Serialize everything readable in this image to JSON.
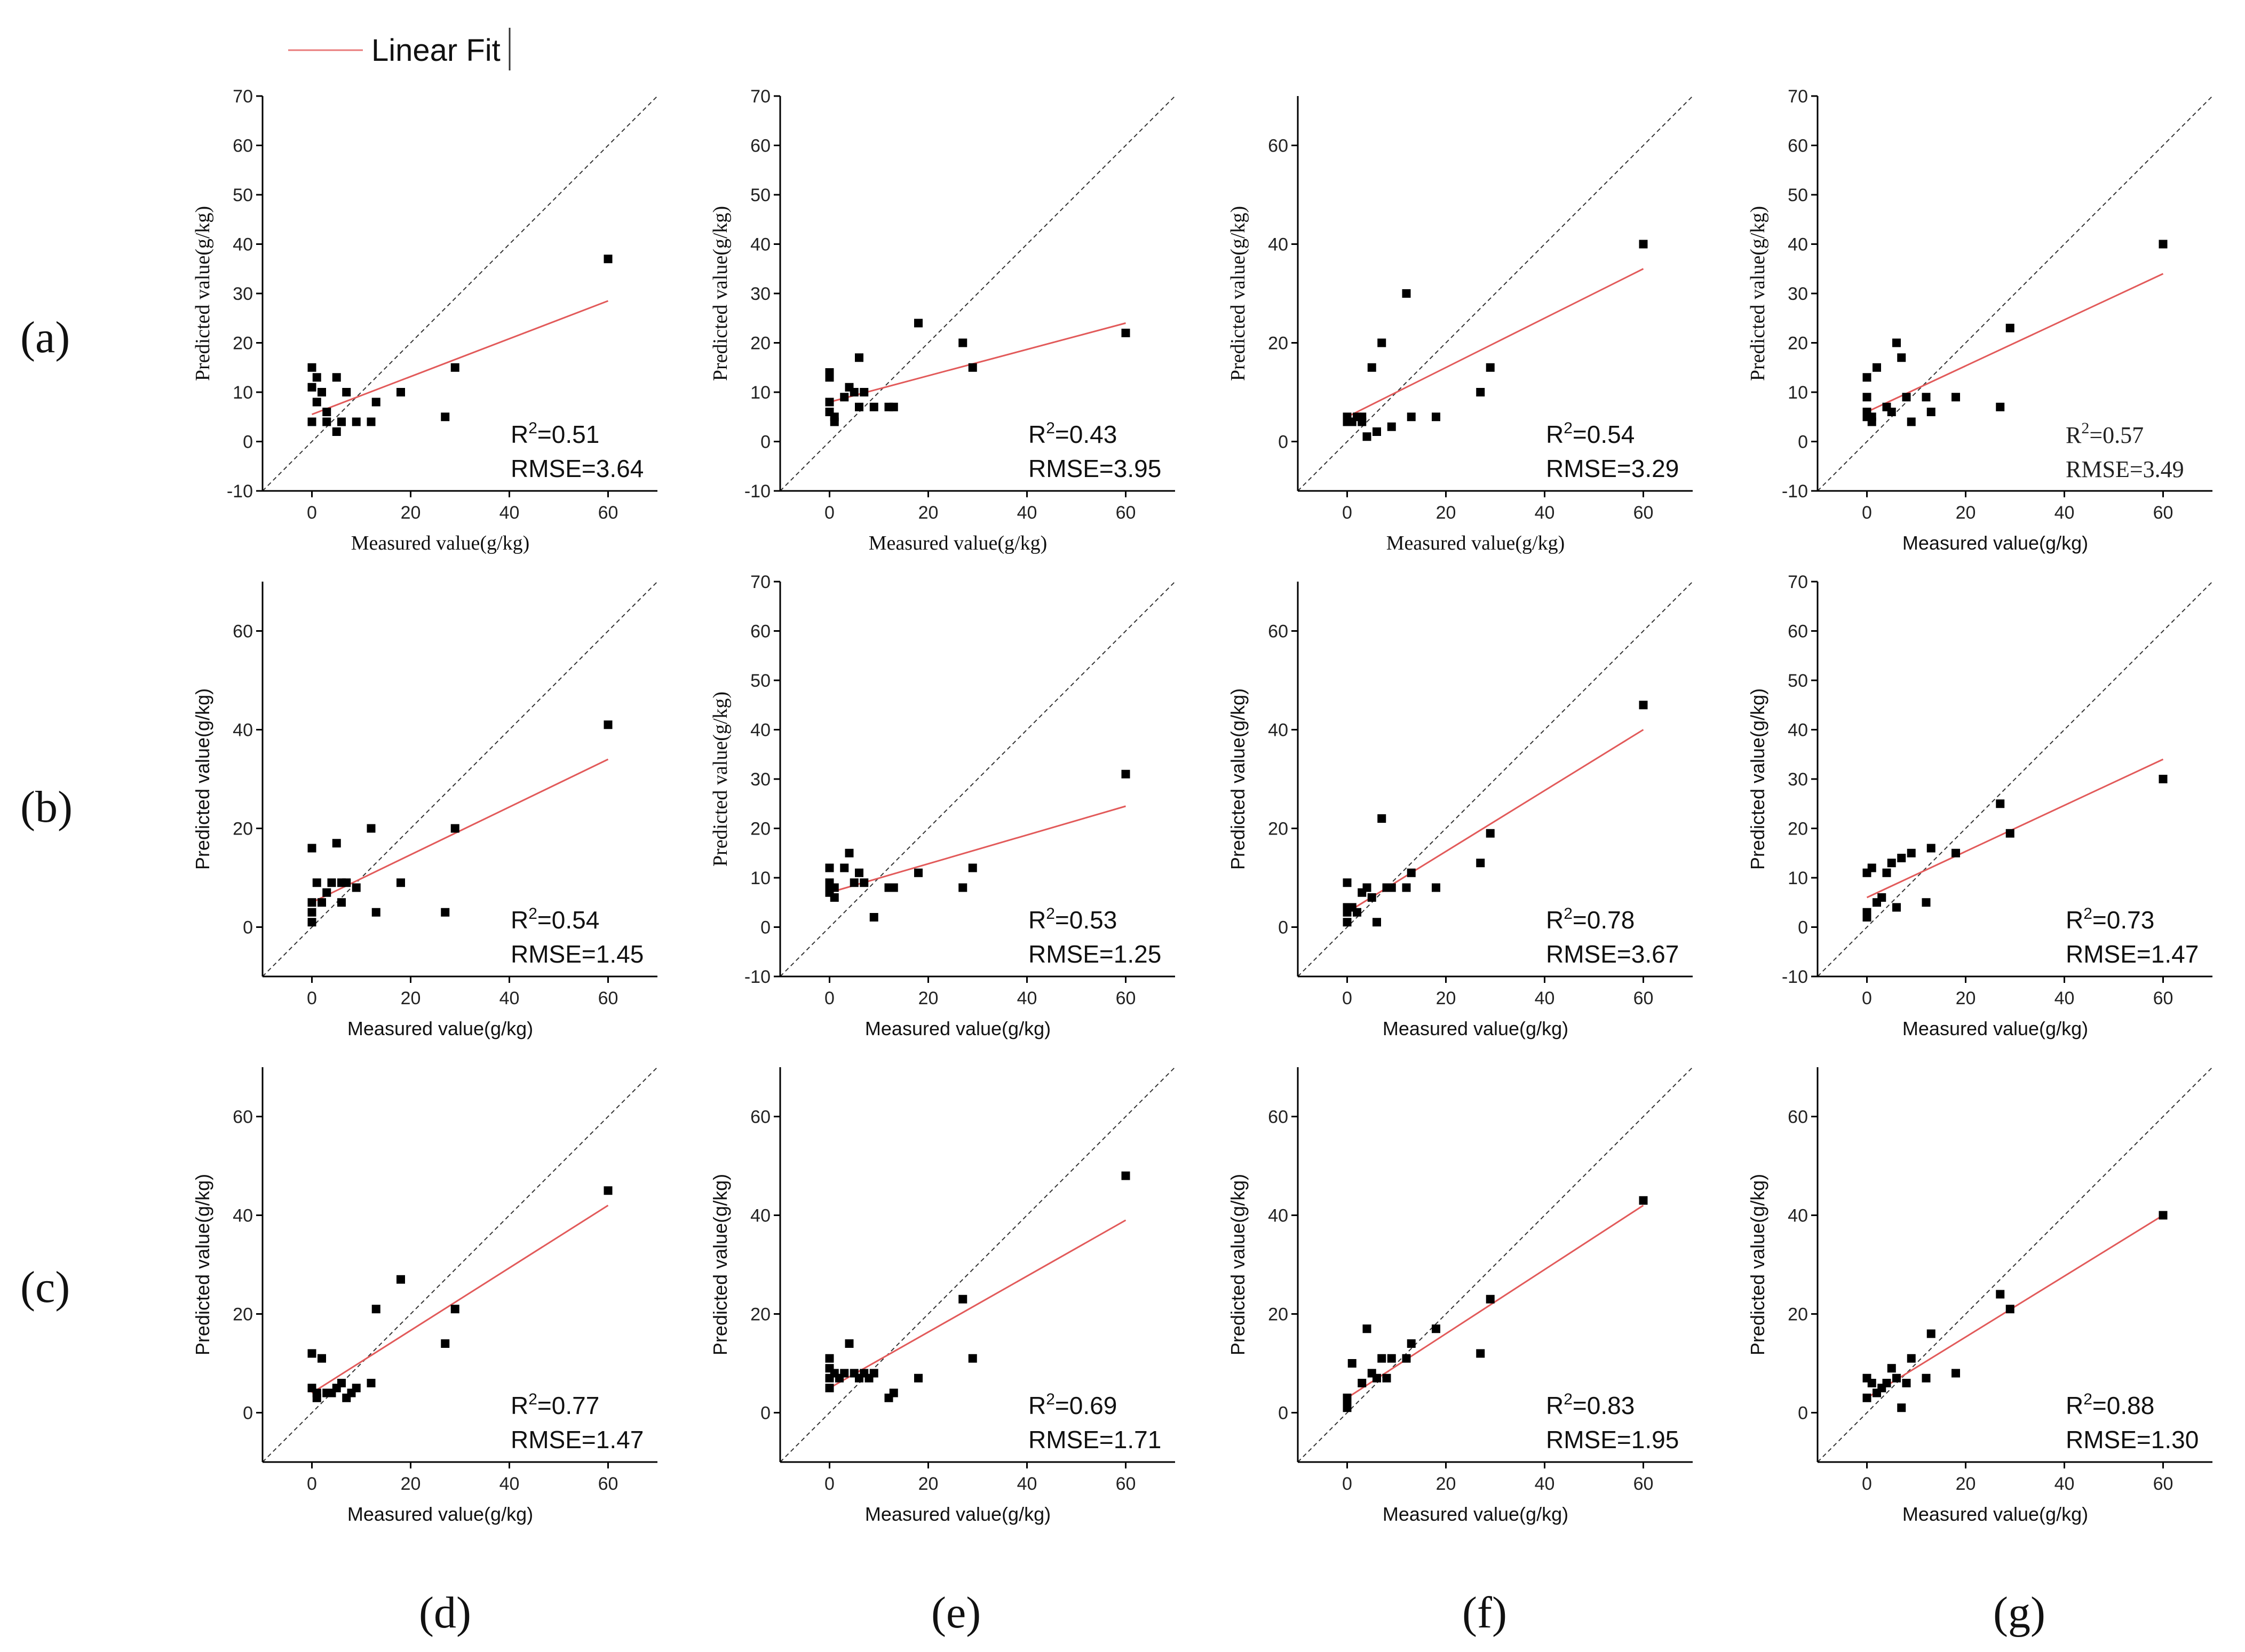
{
  "legend": {
    "label": "Linear Fit",
    "line_color": "#e87a7a"
  },
  "colors": {
    "fit": "#e25a5a",
    "point": "#000000",
    "axis": "#000000",
    "identity": "#333333"
  },
  "row_labels": [
    "(a)",
    "(b)",
    "(c)"
  ],
  "column_labels": [
    "(d)",
    "(e)",
    "(f)",
    "(g)"
  ],
  "chart_data": [
    {
      "type": "scatter",
      "row": 0,
      "col": 0,
      "xlabel": "Measured value(g/kg)",
      "xlabel_serif": true,
      "ylabel": "Predicted value(g/kg)",
      "ylabel_serif": true,
      "xlim": [
        -10,
        70
      ],
      "ylim": [
        -10,
        70
      ],
      "xticks": [
        "0",
        "20",
        "40",
        "60"
      ],
      "yticks": [
        "-10",
        "0",
        "10",
        "20",
        "30",
        "40",
        "50",
        "60",
        "70"
      ],
      "stat_lines": [
        "R2=0.51",
        "RMSE=3.64"
      ],
      "stat_serif": false,
      "points": [
        [
          0,
          15
        ],
        [
          0,
          11
        ],
        [
          1,
          8
        ],
        [
          1,
          13
        ],
        [
          2,
          10
        ],
        [
          0,
          4
        ],
        [
          3,
          4
        ],
        [
          3,
          6
        ],
        [
          5,
          13
        ],
        [
          5,
          2
        ],
        [
          6,
          4
        ],
        [
          7,
          10
        ],
        [
          9,
          4
        ],
        [
          12,
          4
        ],
        [
          13,
          8
        ],
        [
          18,
          10
        ],
        [
          27,
          5
        ],
        [
          29,
          15
        ],
        [
          60,
          37
        ]
      ],
      "fit": [
        [
          0,
          5.5
        ],
        [
          60,
          28.5
        ]
      ]
    },
    {
      "type": "scatter",
      "row": 0,
      "col": 1,
      "xlabel": "Measured value(g/kg)",
      "xlabel_serif": true,
      "ylabel": "Predicted value(g/kg)",
      "ylabel_serif": true,
      "xlim": [
        -10,
        70
      ],
      "ylim": [
        -10,
        70
      ],
      "xticks": [
        "0",
        "20",
        "40",
        "60"
      ],
      "yticks": [
        "-10",
        "0",
        "10",
        "20",
        "30",
        "40",
        "50",
        "60",
        "70"
      ],
      "stat_lines": [
        "R2=0.43",
        "RMSE=3.95"
      ],
      "stat_serif": false,
      "points": [
        [
          0,
          14
        ],
        [
          0,
          13
        ],
        [
          0,
          8
        ],
        [
          0,
          6
        ],
        [
          1,
          5
        ],
        [
          1,
          4
        ],
        [
          3,
          9
        ],
        [
          4,
          11
        ],
        [
          5,
          10
        ],
        [
          6,
          17
        ],
        [
          6,
          7
        ],
        [
          7,
          10
        ],
        [
          9,
          7
        ],
        [
          12,
          7
        ],
        [
          13,
          7
        ],
        [
          18,
          24
        ],
        [
          27,
          20
        ],
        [
          29,
          15
        ],
        [
          60,
          22
        ]
      ],
      "fit": [
        [
          0,
          8
        ],
        [
          60,
          24
        ]
      ]
    },
    {
      "type": "scatter",
      "row": 0,
      "col": 2,
      "xlabel": "Measured value(g/kg)",
      "xlabel_serif": true,
      "ylabel": "Predicted value(g/kg)",
      "ylabel_serif": true,
      "xlim": [
        -10,
        70
      ],
      "ylim": [
        -10,
        70
      ],
      "xticks": [
        "0",
        "20",
        "40",
        "60"
      ],
      "yticks": [
        "0",
        "20",
        "40",
        "60"
      ],
      "stat_lines": [
        "R2=0.54",
        "RMSE=3.29"
      ],
      "stat_serif": false,
      "points": [
        [
          0,
          5
        ],
        [
          0,
          4
        ],
        [
          1,
          4
        ],
        [
          2,
          5
        ],
        [
          3,
          5
        ],
        [
          3,
          4
        ],
        [
          4,
          1
        ],
        [
          5,
          15
        ],
        [
          6,
          2
        ],
        [
          7,
          20
        ],
        [
          9,
          3
        ],
        [
          12,
          30
        ],
        [
          13,
          5
        ],
        [
          18,
          5
        ],
        [
          27,
          10
        ],
        [
          29,
          15
        ],
        [
          60,
          40
        ]
      ],
      "fit": [
        [
          0,
          5
        ],
        [
          60,
          35
        ]
      ]
    },
    {
      "type": "scatter",
      "row": 0,
      "col": 3,
      "xlabel": "Measured value(g/kg)",
      "xlabel_serif": false,
      "ylabel": "Predicted value(g/kg)",
      "ylabel_serif": true,
      "xlim": [
        -10,
        70
      ],
      "ylim": [
        -10,
        70
      ],
      "xticks": [
        "0",
        "20",
        "40",
        "60"
      ],
      "yticks": [
        "-10",
        "0",
        "10",
        "20",
        "30",
        "40",
        "50",
        "60",
        "70"
      ],
      "stat_lines": [
        "R2=0.57",
        "RMSE=3.49"
      ],
      "stat_serif": true,
      "points": [
        [
          0,
          13
        ],
        [
          0,
          9
        ],
        [
          0,
          6
        ],
        [
          0,
          5
        ],
        [
          1,
          4
        ],
        [
          1,
          5
        ],
        [
          2,
          15
        ],
        [
          4,
          7
        ],
        [
          5,
          6
        ],
        [
          6,
          20
        ],
        [
          7,
          17
        ],
        [
          8,
          9
        ],
        [
          9,
          4
        ],
        [
          12,
          9
        ],
        [
          13,
          6
        ],
        [
          18,
          9
        ],
        [
          27,
          7
        ],
        [
          29,
          23
        ],
        [
          60,
          40
        ]
      ],
      "fit": [
        [
          0,
          6
        ],
        [
          60,
          34
        ]
      ]
    },
    {
      "type": "scatter",
      "row": 1,
      "col": 0,
      "xlabel": "Measured value(g/kg)",
      "xlabel_serif": false,
      "ylabel": "Predicted value(g/kg)",
      "ylabel_serif": false,
      "xlim": [
        -10,
        70
      ],
      "ylim": [
        -10,
        70
      ],
      "xticks": [
        "0",
        "20",
        "40",
        "60"
      ],
      "yticks": [
        "0",
        "20",
        "40",
        "60"
      ],
      "stat_lines": [
        "R2=0.54",
        "RMSE=1.45"
      ],
      "stat_serif": false,
      "points": [
        [
          0,
          16
        ],
        [
          0,
          5
        ],
        [
          0,
          3
        ],
        [
          0,
          1
        ],
        [
          1,
          9
        ],
        [
          2,
          5
        ],
        [
          3,
          7
        ],
        [
          4,
          9
        ],
        [
          5,
          17
        ],
        [
          6,
          9
        ],
        [
          6,
          5
        ],
        [
          7,
          9
        ],
        [
          9,
          8
        ],
        [
          12,
          20
        ],
        [
          13,
          3
        ],
        [
          18,
          9
        ],
        [
          27,
          3
        ],
        [
          29,
          20
        ],
        [
          60,
          41
        ]
      ],
      "fit": [
        [
          0,
          5
        ],
        [
          60,
          34
        ]
      ]
    },
    {
      "type": "scatter",
      "row": 1,
      "col": 1,
      "xlabel": "Measured value(g/kg)",
      "xlabel_serif": false,
      "ylabel": "Predicted value(g/kg)",
      "ylabel_serif": true,
      "xlim": [
        -10,
        70
      ],
      "ylim": [
        -10,
        70
      ],
      "xticks": [
        "0",
        "20",
        "40",
        "60"
      ],
      "yticks": [
        "-10",
        "0",
        "10",
        "20",
        "30",
        "40",
        "50",
        "60",
        "70"
      ],
      "stat_lines": [
        "R2=0.53",
        "RMSE=1.25"
      ],
      "stat_serif": false,
      "points": [
        [
          0,
          12
        ],
        [
          0,
          9
        ],
        [
          0,
          8
        ],
        [
          0,
          7
        ],
        [
          1,
          6
        ],
        [
          1,
          8
        ],
        [
          3,
          12
        ],
        [
          4,
          15
        ],
        [
          5,
          9
        ],
        [
          6,
          11
        ],
        [
          7,
          9
        ],
        [
          9,
          2
        ],
        [
          12,
          8
        ],
        [
          13,
          8
        ],
        [
          18,
          11
        ],
        [
          27,
          8
        ],
        [
          29,
          12
        ],
        [
          60,
          31
        ]
      ],
      "fit": [
        [
          0,
          7
        ],
        [
          60,
          24.5
        ]
      ]
    },
    {
      "type": "scatter",
      "row": 1,
      "col": 2,
      "xlabel": "Measured value(g/kg)",
      "xlabel_serif": false,
      "ylabel": "Predicted value(g/kg)",
      "ylabel_serif": false,
      "xlim": [
        -10,
        70
      ],
      "ylim": [
        -10,
        70
      ],
      "xticks": [
        "0",
        "20",
        "40",
        "60"
      ],
      "yticks": [
        "0",
        "20",
        "40",
        "60"
      ],
      "stat_lines": [
        "R2=0.78",
        "RMSE=3.67"
      ],
      "stat_serif": false,
      "points": [
        [
          0,
          9
        ],
        [
          0,
          4
        ],
        [
          0,
          3
        ],
        [
          0,
          1
        ],
        [
          1,
          4
        ],
        [
          2,
          3
        ],
        [
          3,
          7
        ],
        [
          4,
          8
        ],
        [
          5,
          6
        ],
        [
          6,
          1
        ],
        [
          7,
          22
        ],
        [
          8,
          8
        ],
        [
          9,
          8
        ],
        [
          12,
          8
        ],
        [
          13,
          11
        ],
        [
          18,
          8
        ],
        [
          27,
          13
        ],
        [
          29,
          19
        ],
        [
          60,
          45
        ]
      ],
      "fit": [
        [
          0,
          3
        ],
        [
          60,
          40
        ]
      ]
    },
    {
      "type": "scatter",
      "row": 1,
      "col": 3,
      "xlabel": "Measured value(g/kg)",
      "xlabel_serif": false,
      "ylabel": "Predicted value(g/kg)",
      "ylabel_serif": false,
      "xlim": [
        -10,
        70
      ],
      "ylim": [
        -10,
        70
      ],
      "xticks": [
        "0",
        "20",
        "40",
        "60"
      ],
      "yticks": [
        "-10",
        "0",
        "10",
        "20",
        "30",
        "40",
        "50",
        "60",
        "70"
      ],
      "stat_lines": [
        "R2=0.73",
        "RMSE=1.47"
      ],
      "stat_serif": false,
      "points": [
        [
          0,
          11
        ],
        [
          0,
          3
        ],
        [
          0,
          2
        ],
        [
          1,
          12
        ],
        [
          2,
          5
        ],
        [
          3,
          6
        ],
        [
          4,
          11
        ],
        [
          5,
          13
        ],
        [
          6,
          4
        ],
        [
          7,
          14
        ],
        [
          9,
          15
        ],
        [
          12,
          5
        ],
        [
          13,
          16
        ],
        [
          18,
          15
        ],
        [
          27,
          25
        ],
        [
          29,
          19
        ],
        [
          60,
          30
        ]
      ],
      "fit": [
        [
          0,
          6
        ],
        [
          60,
          34
        ]
      ]
    },
    {
      "type": "scatter",
      "row": 2,
      "col": 0,
      "xlabel": "Measured value(g/kg)",
      "xlabel_serif": false,
      "ylabel": "Predicted value(g/kg)",
      "ylabel_serif": false,
      "xlim": [
        -10,
        70
      ],
      "ylim": [
        -10,
        70
      ],
      "xticks": [
        "0",
        "20",
        "40",
        "60"
      ],
      "yticks": [
        "0",
        "20",
        "40",
        "60"
      ],
      "stat_lines": [
        "R2=0.77",
        "RMSE=1.47"
      ],
      "stat_serif": false,
      "points": [
        [
          0,
          12
        ],
        [
          0,
          5
        ],
        [
          1,
          4
        ],
        [
          1,
          3
        ],
        [
          2,
          11
        ],
        [
          3,
          4
        ],
        [
          4,
          4
        ],
        [
          5,
          5
        ],
        [
          6,
          6
        ],
        [
          7,
          3
        ],
        [
          8,
          4
        ],
        [
          9,
          5
        ],
        [
          12,
          6
        ],
        [
          13,
          21
        ],
        [
          18,
          27
        ],
        [
          27,
          14
        ],
        [
          29,
          21
        ],
        [
          60,
          45
        ]
      ],
      "fit": [
        [
          0,
          4
        ],
        [
          60,
          42
        ]
      ]
    },
    {
      "type": "scatter",
      "row": 2,
      "col": 1,
      "xlabel": "Measured value(g/kg)",
      "xlabel_serif": false,
      "ylabel": "Predicted value(g/kg)",
      "ylabel_serif": false,
      "xlim": [
        -10,
        70
      ],
      "ylim": [
        -10,
        70
      ],
      "xticks": [
        "0",
        "20",
        "40",
        "60"
      ],
      "yticks": [
        "0",
        "20",
        "40",
        "60"
      ],
      "stat_lines": [
        "R2=0.69",
        "RMSE=1.71"
      ],
      "stat_serif": false,
      "points": [
        [
          0,
          11
        ],
        [
          0,
          9
        ],
        [
          0,
          7
        ],
        [
          0,
          5
        ],
        [
          1,
          8
        ],
        [
          2,
          7
        ],
        [
          3,
          8
        ],
        [
          4,
          14
        ],
        [
          5,
          8
        ],
        [
          6,
          7
        ],
        [
          7,
          8
        ],
        [
          8,
          7
        ],
        [
          9,
          8
        ],
        [
          12,
          3
        ],
        [
          13,
          4
        ],
        [
          18,
          7
        ],
        [
          27,
          23
        ],
        [
          29,
          11
        ],
        [
          60,
          48
        ]
      ],
      "fit": [
        [
          0,
          5
        ],
        [
          60,
          39
        ]
      ]
    },
    {
      "type": "scatter",
      "row": 2,
      "col": 2,
      "xlabel": "Measured value(g/kg)",
      "xlabel_serif": false,
      "ylabel": "Predicted value(g/kg)",
      "ylabel_serif": false,
      "xlim": [
        -10,
        70
      ],
      "ylim": [
        -10,
        70
      ],
      "xticks": [
        "0",
        "20",
        "40",
        "60"
      ],
      "yticks": [
        "0",
        "20",
        "40",
        "60"
      ],
      "stat_lines": [
        "R2=0.83",
        "RMSE=1.95"
      ],
      "stat_serif": false,
      "points": [
        [
          0,
          3
        ],
        [
          0,
          2
        ],
        [
          0,
          1
        ],
        [
          1,
          10
        ],
        [
          3,
          6
        ],
        [
          4,
          17
        ],
        [
          5,
          8
        ],
        [
          6,
          7
        ],
        [
          7,
          11
        ],
        [
          8,
          7
        ],
        [
          9,
          11
        ],
        [
          12,
          11
        ],
        [
          13,
          14
        ],
        [
          18,
          17
        ],
        [
          27,
          12
        ],
        [
          29,
          23
        ],
        [
          60,
          43
        ]
      ],
      "fit": [
        [
          0,
          3
        ],
        [
          60,
          42
        ]
      ]
    },
    {
      "type": "scatter",
      "row": 2,
      "col": 3,
      "xlabel": "Measured value(g/kg)",
      "xlabel_serif": false,
      "ylabel": "Predicted value(g/kg)",
      "ylabel_serif": false,
      "xlim": [
        -10,
        70
      ],
      "ylim": [
        -10,
        70
      ],
      "xticks": [
        "0",
        "20",
        "40",
        "60"
      ],
      "yticks": [
        "0",
        "20",
        "40",
        "60"
      ],
      "stat_lines": [
        "R2=0.88",
        "RMSE=1.30"
      ],
      "stat_serif": false,
      "points": [
        [
          0,
          7
        ],
        [
          0,
          3
        ],
        [
          1,
          6
        ],
        [
          2,
          4
        ],
        [
          3,
          5
        ],
        [
          4,
          6
        ],
        [
          5,
          9
        ],
        [
          6,
          7
        ],
        [
          7,
          1
        ],
        [
          8,
          6
        ],
        [
          9,
          11
        ],
        [
          12,
          7
        ],
        [
          13,
          16
        ],
        [
          18,
          8
        ],
        [
          27,
          24
        ],
        [
          29,
          21
        ],
        [
          60,
          40
        ]
      ],
      "fit": [
        [
          0,
          3
        ],
        [
          60,
          40
        ]
      ]
    }
  ]
}
